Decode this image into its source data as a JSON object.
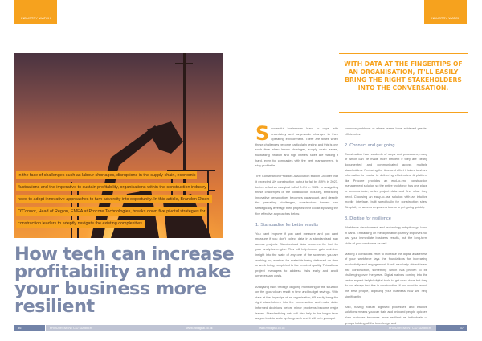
{
  "section_tag": "INDUSTRY WATCH",
  "intro": "In the face of challenges such as labour shortages, disruptions in the supply chain, economic fluctuations and the imperative to sustain profitability, organisations within the construction industry need to adopt innovative approaches to turn adversity into opportunity. In this article, Brandon Olsen-O'Connor, Head of Region, EMEA at Procore Technologies, breaks down five pivotal strategies for construction leaders to adeptly navigate the existing complexities.",
  "headline": "How tech can increase profitability and make your business more resilient",
  "pull_quote": "With data at the fingertips of an organisation, it'll easily bring the right stakeholders into the conversation.",
  "accent_color": "#f6a21e",
  "headline_color": "#7b88a8",
  "body": {
    "dropcap": "S",
    "p1": "uccessful businesses learn to cope with uncertainty and large-scale changes in their operating environment. There are times when these challenges become particularly testing and this is one such time when labour shortages, supply chain issues, fluctuating inflation and high interest rates are making it hard, even for companies with the best management, to stay profitable.",
    "p2": "The Construction Products Association said in October that it expected UK construction output to fall by 8.9% in 2023, before a further marginal fall of 0.4% in 2024. In navigating these challenges of the construction industry, embracing innovative perspectives becomes paramount, and despite the prevailing challenges, construction leaders can strategically leverage their projects their toolkit by using the five effective approaches below.",
    "h1": "1. Standardise for better results",
    "p3": "You can't improve if you can't measure and you can't measure if you don't collect data in a standardised way across projects. Standardised data becomes the fuel for your analytics engine. This will help teams gain real-time insight into the state of any one of the schemes you are working on, whether for materials being delivered on time or work being completed to the required quality. This allows project managers to address risks early and avoid unnecessary costs.",
    "p4": "Analysing risks through ongoing monitoring of the situation on the ground can result in time and budget savings. With data at the fingertips of an organisation, it'll easily bring the right stakeholders into the conversation and make data-informed decisions before minor problems become major issues. Standardising data will also help in the longer term as you look to scale up for growth and it will help you spot",
    "p5": "common problems or where teams have achieved greater efficiencies.",
    "h2": "2. Connect and get going",
    "p6": "Construction has hundreds of steps and processes, many of which can be made more efficient if they are clearly documented and communicated across multiple stakeholders. Reducing the time and effort it takes to share information is crucial to delivering efficiencies. A platform like Procore provides an end-to-end construction management solution so the entire workforce has one place to communicate, order project data and find what they need. Choosing an easy-to-use solution with an intuitive mobile interface, built specifically for construction sites. Simplicity of access empowers teams to get going quickly.",
    "h3": "3. Digitise for resilience",
    "p7": "Workforce development and technology adoption go hand in hand. Embarking on the digitisation journey improves not just your immediate business results, but the long-term skills of your workforce as well.",
    "p8": "Making a conscious effort to increase the digital awareness of your workforce lays the foundations for increasing productivity and engagement. It will also help attract talent into construction, something which has proven to be challenging over the years. Digital natives coming into the sector expect helpful digital tools to get work done but they do not always find this in construction. If you want to recruit the best people, digitising your business now will help significantly.",
    "p9": "Also, having robust digitised processes and intuitive solutions means you can train and onboard people quicker. Your business becomes more resilient as individuals or groups holding all the knowledge and"
  },
  "footer": {
    "left_page": "36",
    "right_page": "37",
    "publication": "PROCUREMENT CIO SUMMER",
    "website": "www.mbdigital.co.uk"
  }
}
